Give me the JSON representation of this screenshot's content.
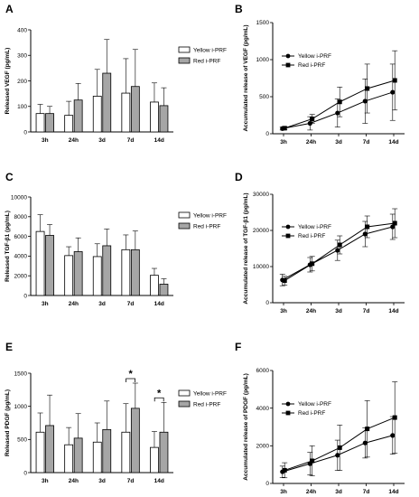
{
  "colors": {
    "yellow": "#ffffff",
    "red": "#a6a6a6",
    "axis": "#000000",
    "line": "#000000"
  },
  "chart_data": [
    {
      "id": "A",
      "type": "bar",
      "letter": "A",
      "ylabel": "Released VEGF (pg/mL)",
      "categories": [
        "3h",
        "24h",
        "3d",
        "7d",
        "14d"
      ],
      "ylim": [
        0,
        400
      ],
      "yticks": [
        0,
        100,
        200,
        300,
        400
      ],
      "legend": "right",
      "series": [
        {
          "name": "Yellow i-PRF",
          "values": [
            72,
            65,
            140,
            152,
            117
          ],
          "errors": [
            36,
            55,
            105,
            135,
            75
          ]
        },
        {
          "name": "Red i-PRF",
          "values": [
            72,
            125,
            230,
            178,
            103
          ],
          "errors": [
            28,
            65,
            132,
            145,
            70
          ]
        }
      ],
      "annotations": []
    },
    {
      "id": "B",
      "type": "line",
      "letter": "B",
      "ylabel": "Accumulated release of VEGF (pg/mL)",
      "categories": [
        "3h",
        "24h",
        "3d",
        "7d",
        "14d"
      ],
      "ylim": [
        0,
        1500
      ],
      "yticks": [
        0,
        500,
        1000,
        1500
      ],
      "legend": "top-left",
      "series": [
        {
          "name": "Yellow i-PRF",
          "marker": "circle",
          "values": [
            70,
            140,
            280,
            440,
            560
          ],
          "errors": [
            20,
            90,
            190,
            300,
            380
          ]
        },
        {
          "name": "Red i-PRF",
          "marker": "square",
          "values": [
            75,
            200,
            430,
            610,
            720
          ],
          "errors": [
            20,
            60,
            200,
            330,
            400
          ]
        }
      ]
    },
    {
      "id": "C",
      "type": "bar",
      "letter": "C",
      "ylabel": "Released TGF-β1 (pg/mL)",
      "categories": [
        "3h",
        "24h",
        "3d",
        "7d",
        "14d"
      ],
      "ylim": [
        0,
        10000
      ],
      "yticks": [
        0,
        2000,
        4000,
        6000,
        8000,
        10000
      ],
      "legend": "right",
      "series": [
        {
          "name": "Yellow i-PRF",
          "values": [
            6500,
            4050,
            3950,
            4650,
            2050
          ],
          "errors": [
            1700,
            900,
            1300,
            1500,
            700
          ]
        },
        {
          "name": "Red i-PRF",
          "values": [
            6100,
            4450,
            5050,
            4650,
            1150
          ],
          "errors": [
            1100,
            1400,
            1700,
            1900,
            550
          ]
        }
      ],
      "annotations": []
    },
    {
      "id": "D",
      "type": "line",
      "letter": "D",
      "ylabel": "Accumulated release of TGF-β1 (pg/mL)",
      "categories": [
        "3h",
        "24h",
        "3d",
        "7d",
        "14d"
      ],
      "ylim": [
        0,
        30000
      ],
      "yticks": [
        0,
        10000,
        20000,
        30000
      ],
      "legend": "top-left",
      "series": [
        {
          "name": "Yellow i-PRF",
          "marker": "circle",
          "values": [
            6300,
            10500,
            14500,
            19000,
            21000
          ],
          "errors": [
            1600,
            2000,
            2800,
            3500,
            3500
          ]
        },
        {
          "name": "Red i-PRF",
          "marker": "square",
          "values": [
            6100,
            10800,
            16000,
            21000,
            22000
          ],
          "errors": [
            1200,
            2000,
            2500,
            3000,
            4000
          ]
        }
      ]
    },
    {
      "id": "E",
      "type": "bar",
      "letter": "E",
      "ylabel": "Released PDGF (pg/mL)",
      "categories": [
        "3h",
        "24h",
        "3d",
        "7d",
        "14d"
      ],
      "ylim": [
        0,
        1500
      ],
      "yticks": [
        0,
        500,
        1000,
        1500
      ],
      "legend": "right",
      "series": [
        {
          "name": "Yellow i-PRF",
          "values": [
            610,
            420,
            460,
            610,
            380
          ],
          "errors": [
            290,
            260,
            290,
            430,
            240
          ]
        },
        {
          "name": "Red i-PRF",
          "values": [
            710,
            520,
            650,
            970,
            610
          ],
          "errors": [
            460,
            370,
            430,
            380,
            450
          ]
        }
      ],
      "annotations": [
        {
          "category": "7d",
          "text": "*"
        },
        {
          "category": "14d",
          "text": "*"
        }
      ]
    },
    {
      "id": "F",
      "type": "line",
      "letter": "F",
      "ylabel": "Accumulated release of PDGF (pg/mL)",
      "categories": [
        "3h",
        "24h",
        "3d",
        "7d",
        "14d"
      ],
      "ylim": [
        0,
        6000
      ],
      "yticks": [
        0,
        2000,
        4000,
        6000
      ],
      "legend": "top-left",
      "series": [
        {
          "name": "Yellow i-PRF",
          "marker": "circle",
          "values": [
            620,
            1050,
            1500,
            2150,
            2550
          ],
          "errors": [
            300,
            600,
            800,
            800,
            1000
          ]
        },
        {
          "name": "Red i-PRF",
          "marker": "square",
          "values": [
            700,
            1200,
            1900,
            2900,
            3500
          ],
          "errors": [
            400,
            800,
            1200,
            1500,
            1900
          ]
        }
      ]
    }
  ]
}
